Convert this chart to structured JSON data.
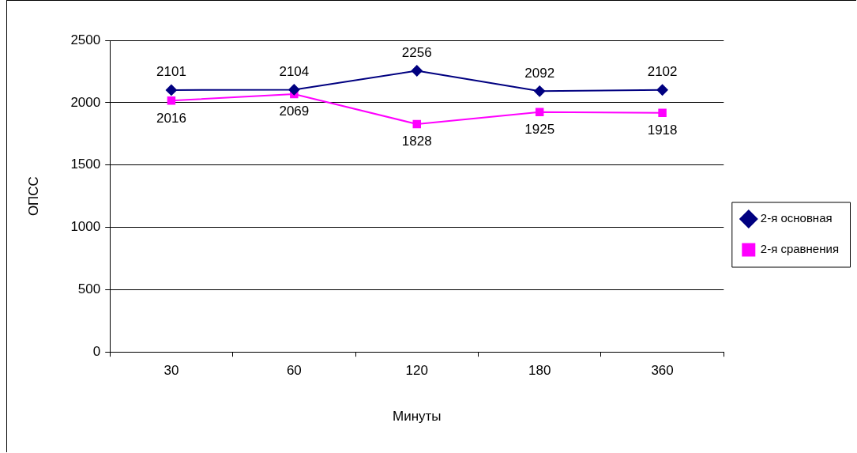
{
  "chart_data": {
    "type": "line",
    "xlabel": "Минуты",
    "ylabel": "ОПСС",
    "categories": [
      "30",
      "60",
      "120",
      "180",
      "360"
    ],
    "series": [
      {
        "name": "2-я основная",
        "color": "#000080",
        "marker": "diamond",
        "values": [
          2101,
          2104,
          2256,
          2092,
          2102
        ]
      },
      {
        "name": "2-я сравнения",
        "color": "#ff00ff",
        "marker": "square",
        "values": [
          2016,
          2069,
          1828,
          1925,
          1918
        ]
      }
    ],
    "ylim": [
      0,
      2500
    ],
    "yticks": [
      0,
      500,
      1000,
      1500,
      2000,
      2500
    ],
    "grid": "y",
    "legend": "right",
    "data_labels": true,
    "line_style": "solid"
  }
}
